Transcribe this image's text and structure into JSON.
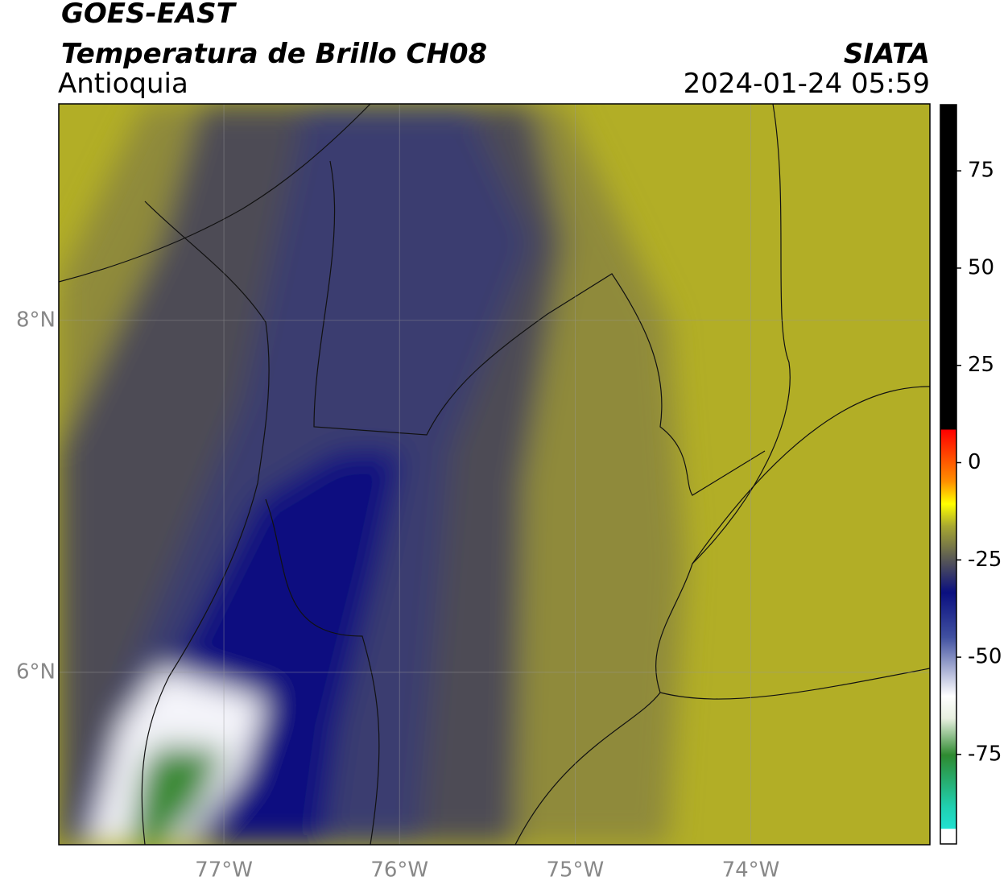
{
  "header": {
    "title": "GOES-EAST",
    "subtitle": "Temperatura de Brillo CH08",
    "region": "Antioquia",
    "source": "SIATA",
    "timestamp": "2024-01-24 05:59"
  },
  "map": {
    "lon_range": [
      -77.94,
      -72.98
    ],
    "lat_range": [
      5.02,
      9.23
    ],
    "lon_ticks": [
      {
        "value": -77,
        "label": "77°W"
      },
      {
        "value": -76,
        "label": "76°W"
      },
      {
        "value": -75,
        "label": "75°W"
      },
      {
        "value": -74,
        "label": "74°W"
      }
    ],
    "lat_ticks": [
      {
        "value": 8,
        "label": "8°N"
      },
      {
        "value": 6,
        "label": "6°N"
      }
    ]
  },
  "colorbar": {
    "range": [
      -98,
      92
    ],
    "ticks": [
      75,
      50,
      25,
      0,
      -25,
      -50,
      -75
    ]
  }
}
